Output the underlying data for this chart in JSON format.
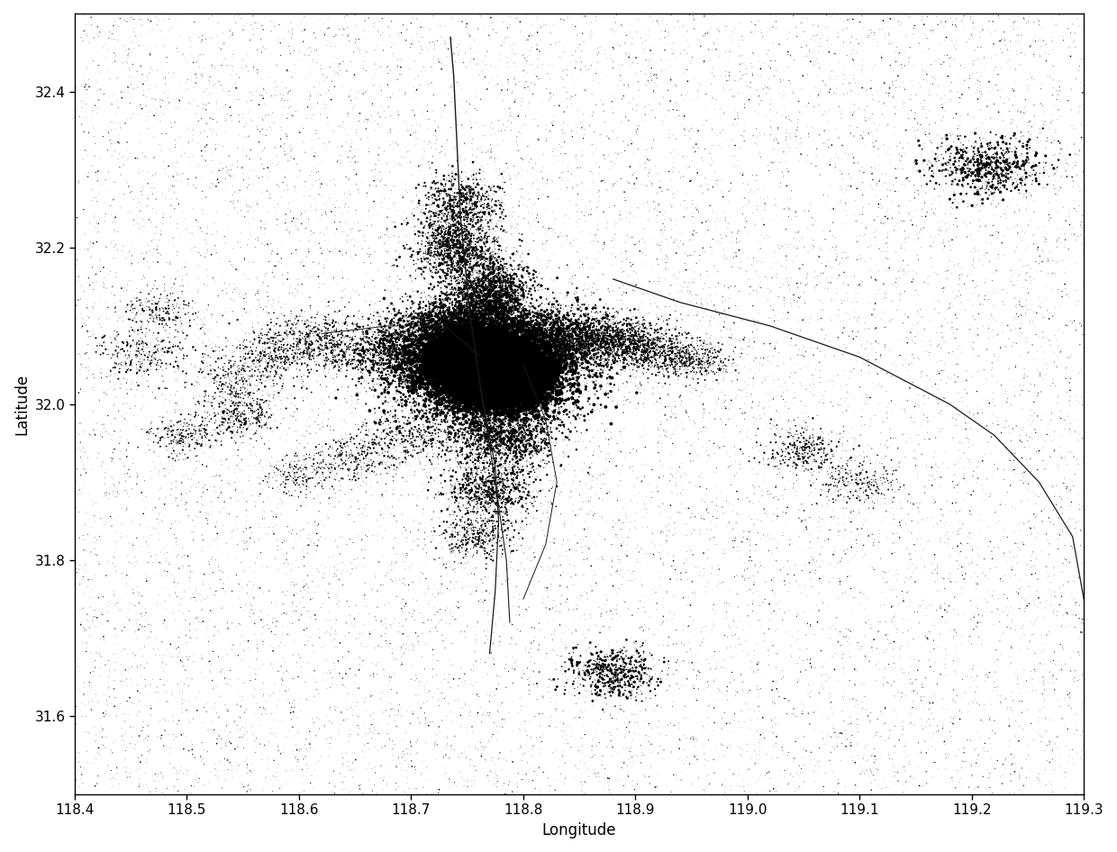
{
  "xlim": [
    118.4,
    119.3
  ],
  "ylim": [
    31.5,
    32.5
  ],
  "xlabel": "Longitude",
  "ylabel": "Latitude",
  "xticks": [
    118.4,
    118.5,
    118.6,
    118.7,
    118.8,
    118.9,
    119.0,
    119.1,
    119.2,
    119.3
  ],
  "yticks": [
    31.6,
    31.8,
    32.0,
    32.2,
    32.4
  ],
  "background_color": "#ffffff",
  "dot_color": "#000000",
  "line_color": "#1a1a1a",
  "seed": 42,
  "roads": [
    {
      "points": [
        [
          118.735,
          32.47
        ],
        [
          118.738,
          32.42
        ],
        [
          118.74,
          32.36
        ],
        [
          118.742,
          32.3
        ],
        [
          118.744,
          32.24
        ],
        [
          118.748,
          32.18
        ],
        [
          118.752,
          32.12
        ],
        [
          118.758,
          32.06
        ],
        [
          118.762,
          32.02
        ]
      ],
      "lw": 1.0
    },
    {
      "points": [
        [
          118.762,
          32.02
        ],
        [
          118.775,
          31.92
        ],
        [
          118.778,
          31.85
        ],
        [
          118.775,
          31.76
        ],
        [
          118.77,
          31.68
        ]
      ],
      "lw": 0.9
    },
    {
      "points": [
        [
          118.88,
          32.16
        ],
        [
          118.94,
          32.13
        ],
        [
          119.02,
          32.1
        ],
        [
          119.1,
          32.06
        ],
        [
          119.18,
          32.0
        ],
        [
          119.22,
          31.96
        ],
        [
          119.26,
          31.9
        ],
        [
          119.29,
          31.83
        ],
        [
          119.3,
          31.75
        ]
      ],
      "lw": 0.9
    },
    {
      "points": [
        [
          118.762,
          32.02
        ],
        [
          118.775,
          31.9
        ],
        [
          118.785,
          31.8
        ],
        [
          118.788,
          31.72
        ]
      ],
      "lw": 0.8
    },
    {
      "points": [
        [
          118.62,
          32.09
        ],
        [
          118.68,
          32.1
        ],
        [
          118.73,
          32.1
        ],
        [
          118.762,
          32.06
        ]
      ],
      "lw": 0.7
    },
    {
      "points": [
        [
          118.8,
          32.05
        ],
        [
          118.82,
          31.98
        ],
        [
          118.83,
          31.9
        ],
        [
          118.82,
          31.82
        ],
        [
          118.8,
          31.75
        ]
      ],
      "lw": 0.7
    }
  ],
  "urban_core": [
    {
      "lon": 118.77,
      "lat": 32.048,
      "n": 6000,
      "slon": 0.022,
      "slat": 0.018
    },
    {
      "lon": 118.758,
      "lat": 32.06,
      "n": 3000,
      "slon": 0.018,
      "slat": 0.015
    },
    {
      "lon": 118.78,
      "lat": 32.03,
      "n": 3000,
      "slon": 0.02,
      "slat": 0.018
    },
    {
      "lon": 118.76,
      "lat": 32.04,
      "n": 2000,
      "slon": 0.015,
      "slat": 0.012
    },
    {
      "lon": 118.75,
      "lat": 32.055,
      "n": 1500,
      "slon": 0.018,
      "slat": 0.015
    },
    {
      "lon": 118.79,
      "lat": 32.05,
      "n": 1500,
      "slon": 0.015,
      "slat": 0.013
    }
  ],
  "dense_clusters": [
    {
      "lon": 118.77,
      "lat": 32.048,
      "n": 8000,
      "slon": 0.04,
      "slat": 0.032,
      "size_min": 0.5,
      "size_max": 8.0
    },
    {
      "lon": 118.76,
      "lat": 32.085,
      "n": 2500,
      "slon": 0.025,
      "slat": 0.025,
      "size_min": 0.5,
      "size_max": 6.0
    },
    {
      "lon": 118.77,
      "lat": 32.14,
      "n": 1800,
      "slon": 0.018,
      "slat": 0.025,
      "size_min": 0.5,
      "size_max": 5.0
    },
    {
      "lon": 118.74,
      "lat": 32.2,
      "n": 1200,
      "slon": 0.018,
      "slat": 0.02,
      "size_min": 0.3,
      "size_max": 4.0
    },
    {
      "lon": 118.745,
      "lat": 32.255,
      "n": 800,
      "slon": 0.018,
      "slat": 0.02,
      "size_min": 0.3,
      "size_max": 4.0
    },
    {
      "lon": 118.73,
      "lat": 32.095,
      "n": 1500,
      "slon": 0.025,
      "slat": 0.02,
      "size_min": 0.5,
      "size_max": 5.0
    },
    {
      "lon": 118.68,
      "lat": 32.065,
      "n": 1000,
      "slon": 0.022,
      "slat": 0.018,
      "size_min": 0.3,
      "size_max": 4.0
    },
    {
      "lon": 118.62,
      "lat": 32.08,
      "n": 500,
      "slon": 0.02,
      "slat": 0.018,
      "size_min": 0.3,
      "size_max": 3.0
    },
    {
      "lon": 118.58,
      "lat": 32.065,
      "n": 400,
      "slon": 0.02,
      "slat": 0.018,
      "size_min": 0.3,
      "size_max": 3.0
    },
    {
      "lon": 118.83,
      "lat": 32.085,
      "n": 1200,
      "slon": 0.022,
      "slat": 0.018,
      "size_min": 0.5,
      "size_max": 5.0
    },
    {
      "lon": 118.87,
      "lat": 32.085,
      "n": 800,
      "slon": 0.02,
      "slat": 0.018,
      "size_min": 0.3,
      "size_max": 4.0
    },
    {
      "lon": 118.9,
      "lat": 32.075,
      "n": 600,
      "slon": 0.018,
      "slat": 0.015,
      "size_min": 0.3,
      "size_max": 3.5
    },
    {
      "lon": 118.93,
      "lat": 32.065,
      "n": 400,
      "slon": 0.018,
      "slat": 0.015,
      "size_min": 0.3,
      "size_max": 3.0
    },
    {
      "lon": 118.955,
      "lat": 32.055,
      "n": 300,
      "slon": 0.015,
      "slat": 0.012,
      "size_min": 0.3,
      "size_max": 2.5
    },
    {
      "lon": 118.78,
      "lat": 31.96,
      "n": 1500,
      "slon": 0.025,
      "slat": 0.022,
      "size_min": 0.5,
      "size_max": 5.0
    },
    {
      "lon": 118.77,
      "lat": 31.89,
      "n": 800,
      "slon": 0.02,
      "slat": 0.018,
      "size_min": 0.3,
      "size_max": 4.0
    },
    {
      "lon": 118.76,
      "lat": 31.83,
      "n": 400,
      "slon": 0.018,
      "slat": 0.015,
      "size_min": 0.3,
      "size_max": 3.0
    },
    {
      "lon": 119.215,
      "lat": 32.305,
      "n": 700,
      "slon": 0.025,
      "slat": 0.018,
      "size_min": 0.5,
      "size_max": 6.0
    },
    {
      "lon": 118.88,
      "lat": 31.655,
      "n": 600,
      "slon": 0.02,
      "slat": 0.016,
      "size_min": 0.5,
      "size_max": 5.0
    },
    {
      "lon": 118.55,
      "lat": 31.985,
      "n": 350,
      "slon": 0.018,
      "slat": 0.015,
      "size_min": 0.3,
      "size_max": 3.0
    },
    {
      "lon": 118.5,
      "lat": 31.96,
      "n": 250,
      "slon": 0.016,
      "slat": 0.013,
      "size_min": 0.3,
      "size_max": 2.5
    },
    {
      "lon": 118.54,
      "lat": 32.03,
      "n": 300,
      "slon": 0.018,
      "slat": 0.015,
      "size_min": 0.3,
      "size_max": 2.5
    },
    {
      "lon": 118.46,
      "lat": 32.065,
      "n": 300,
      "slon": 0.02,
      "slat": 0.018,
      "size_min": 0.3,
      "size_max": 3.0
    },
    {
      "lon": 118.475,
      "lat": 32.12,
      "n": 200,
      "slon": 0.018,
      "slat": 0.015,
      "size_min": 0.3,
      "size_max": 2.5
    },
    {
      "lon": 119.05,
      "lat": 31.94,
      "n": 350,
      "slon": 0.018,
      "slat": 0.015,
      "size_min": 0.3,
      "size_max": 3.0
    },
    {
      "lon": 119.1,
      "lat": 31.9,
      "n": 250,
      "slon": 0.018,
      "slat": 0.015,
      "size_min": 0.3,
      "size_max": 2.5
    },
    {
      "lon": 118.7,
      "lat": 31.96,
      "n": 400,
      "slon": 0.02,
      "slat": 0.018,
      "size_min": 0.3,
      "size_max": 3.0
    },
    {
      "lon": 118.65,
      "lat": 31.93,
      "n": 300,
      "slon": 0.018,
      "slat": 0.015,
      "size_min": 0.3,
      "size_max": 2.5
    },
    {
      "lon": 118.6,
      "lat": 31.91,
      "n": 200,
      "slon": 0.016,
      "slat": 0.013,
      "size_min": 0.3,
      "size_max": 2.0
    }
  ],
  "n_background": 15000,
  "bg_size_choices": [
    0.15,
    0.25,
    0.4,
    0.6,
    0.9,
    1.4
  ],
  "bg_size_probs": [
    0.38,
    0.28,
    0.16,
    0.1,
    0.05,
    0.03
  ]
}
